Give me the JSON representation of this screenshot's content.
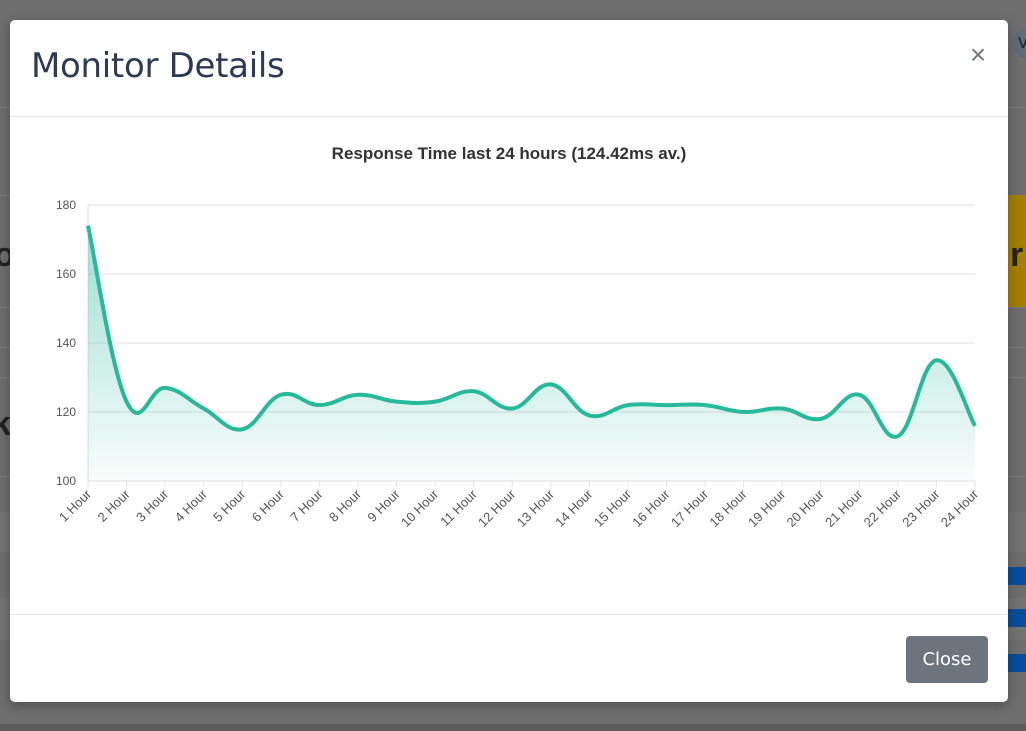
{
  "modal": {
    "title": "Monitor Details",
    "close_icon": "×",
    "close_button_label": "Close"
  },
  "background": {
    "glyph_left_1": "o",
    "glyph_left_2": "k",
    "glyph_right": "r",
    "avatar_letter": "v"
  },
  "colors": {
    "line": "#26b99a",
    "fill": "#26b99a",
    "grid": "#e2e2e2",
    "modal_title": "#2c3a55",
    "close_button": "#6c757d"
  },
  "chart_data": {
    "type": "area",
    "title": "Response Time last 24 hours (124.42ms av.)",
    "categories": [
      "1 Hour",
      "2 Hour",
      "3 Hour",
      "4 Hour",
      "5 Hour",
      "6 Hour",
      "7 Hour",
      "8 Hour",
      "9 Hour",
      "10 Hour",
      "11 Hour",
      "12 Hour",
      "13 Hour",
      "14 Hour",
      "15 Hour",
      "16 Hour",
      "17 Hour",
      "18 Hour",
      "19 Hour",
      "20 Hour",
      "21 Hour",
      "22 Hour",
      "23 Hour",
      "24 Hour"
    ],
    "values": [
      174,
      123,
      127,
      121,
      115,
      125,
      122,
      125,
      123,
      123,
      126,
      121,
      128,
      119,
      122,
      122,
      122,
      120,
      121,
      118,
      125,
      113,
      135,
      116
    ],
    "ylim": [
      100,
      180
    ],
    "yticks": [
      100,
      120,
      140,
      160,
      180
    ],
    "grid": true,
    "legend": "none"
  }
}
